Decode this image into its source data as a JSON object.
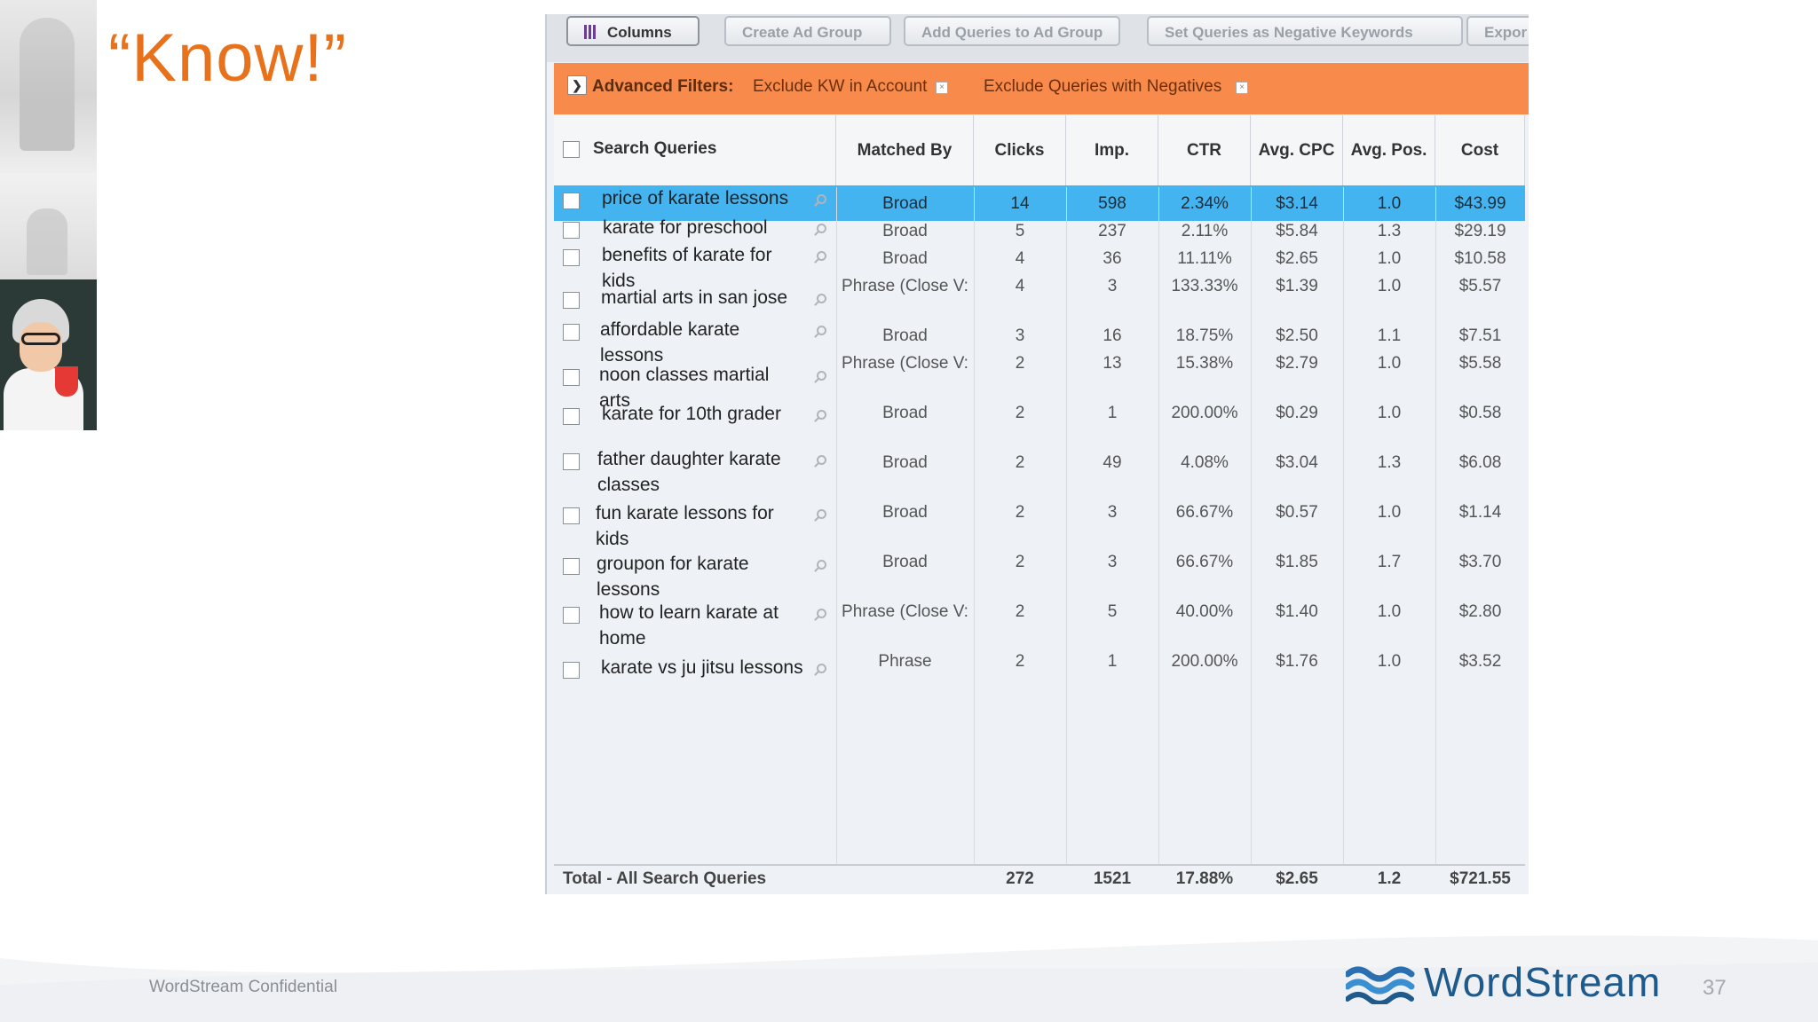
{
  "slide": {
    "title": "“Know!”",
    "footer_confidential": "WordStream Confidential",
    "page_number": "37",
    "brand": "WordStream",
    "accent_color": "#e8721c",
    "brand_color": "#1f5a8c"
  },
  "toolbar": {
    "columns": "Columns",
    "create_ad_group": "Create Ad Group",
    "add_queries": "Add Queries to Ad Group",
    "set_negative": "Set Queries as Negative Keywords",
    "export": "Expor"
  },
  "filters": {
    "label": "Advanced Filters:",
    "chip1": "Exclude KW in Account",
    "chip2": "Exclude Queries with Negatives",
    "bar_color": "#f88a4b"
  },
  "table": {
    "headers": {
      "query": "Search Queries",
      "matched": "Matched By",
      "clicks": "Clicks",
      "impr": "Imp.",
      "ctr": "CTR",
      "cpc": "Avg. CPC",
      "pos": "Avg. Pos.",
      "cost": "Cost"
    },
    "queries": [
      "price of karate lessons",
      "karate for preschool",
      "benefits of karate for kids",
      "martial arts in san jose",
      "affordable karate lessons",
      "noon classes martial arts",
      "karate for 10th grader",
      "father daughter karate classes",
      "fun karate lessons for kids",
      "groupon for karate lessons",
      "how to learn karate at home",
      "karate vs ju jitsu lessons"
    ],
    "rows": [
      {
        "matched": "Broad",
        "clicks": "14",
        "impr": "598",
        "ctr": "2.34%",
        "cpc": "$3.14",
        "pos": "1.0",
        "cost": "$43.99"
      },
      {
        "matched": "Broad",
        "clicks": "5",
        "impr": "237",
        "ctr": "2.11%",
        "cpc": "$5.84",
        "pos": "1.3",
        "cost": "$29.19"
      },
      {
        "matched": "Broad",
        "clicks": "4",
        "impr": "36",
        "ctr": "11.11%",
        "cpc": "$2.65",
        "pos": "1.0",
        "cost": "$10.58"
      },
      {
        "matched": "Phrase (Close V:",
        "clicks": "4",
        "impr": "3",
        "ctr": "133.33%",
        "cpc": "$1.39",
        "pos": "1.0",
        "cost": "$5.57"
      },
      {
        "matched": "Broad",
        "clicks": "3",
        "impr": "16",
        "ctr": "18.75%",
        "cpc": "$2.50",
        "pos": "1.1",
        "cost": "$7.51"
      },
      {
        "matched": "Phrase (Close V:",
        "clicks": "2",
        "impr": "13",
        "ctr": "15.38%",
        "cpc": "$2.79",
        "pos": "1.0",
        "cost": "$5.58"
      },
      {
        "matched": "Broad",
        "clicks": "2",
        "impr": "1",
        "ctr": "200.00%",
        "cpc": "$0.29",
        "pos": "1.0",
        "cost": "$0.58"
      },
      {
        "matched": "Broad",
        "clicks": "2",
        "impr": "49",
        "ctr": "4.08%",
        "cpc": "$3.04",
        "pos": "1.3",
        "cost": "$6.08"
      },
      {
        "matched": "Broad",
        "clicks": "2",
        "impr": "3",
        "ctr": "66.67%",
        "cpc": "$0.57",
        "pos": "1.0",
        "cost": "$1.14"
      },
      {
        "matched": "Broad",
        "clicks": "2",
        "impr": "3",
        "ctr": "66.67%",
        "cpc": "$1.85",
        "pos": "1.7",
        "cost": "$3.70"
      },
      {
        "matched": "Phrase (Close V:",
        "clicks": "2",
        "impr": "5",
        "ctr": "40.00%",
        "cpc": "$1.40",
        "pos": "1.0",
        "cost": "$2.80"
      },
      {
        "matched": "Phrase",
        "clicks": "2",
        "impr": "1",
        "ctr": "200.00%",
        "cpc": "$1.76",
        "pos": "1.0",
        "cost": "$3.52"
      }
    ],
    "selected_row": 0,
    "selected_color": "#44b4f0",
    "totals": {
      "label": "Total - All Search Queries",
      "clicks": "272",
      "impr": "1521",
      "ctr": "17.88%",
      "cpc": "$2.65",
      "pos": "1.2",
      "cost": "$721.55"
    }
  }
}
